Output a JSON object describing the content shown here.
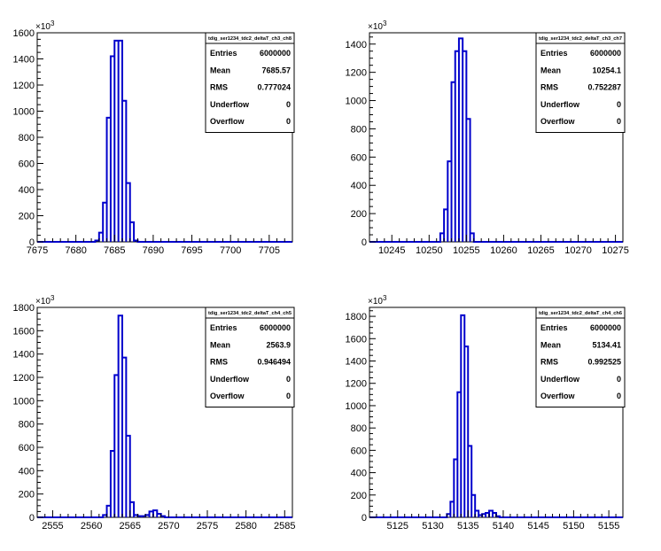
{
  "chart_data": [
    {
      "type": "bar",
      "title": "tdig_ser1234_tdc2_deltaT_ch3_ch8",
      "y_exponent": "10",
      "y_exponent_power": "3",
      "xlim": [
        7675,
        7708
      ],
      "ylim": [
        0,
        1600
      ],
      "x_ticks": [
        7675,
        7680,
        7685,
        7690,
        7695,
        7700,
        7705
      ],
      "y_ticks": [
        0,
        200,
        400,
        600,
        800,
        1000,
        1200,
        1400,
        1600
      ],
      "x_tick_labels": [
        "7675",
        "7680",
        "7685",
        "7690",
        "7695",
        "7700",
        "7705"
      ],
      "y_tick_labels": [
        "0",
        "200",
        "400",
        "600",
        "800",
        "1000",
        "1200",
        "1400",
        "1600"
      ],
      "bin_width": 0.5,
      "bins": [
        [
          7682.5,
          10
        ],
        [
          7683,
          70
        ],
        [
          7683.5,
          300
        ],
        [
          7684,
          950
        ],
        [
          7684.5,
          1420
        ],
        [
          7685,
          1540
        ],
        [
          7685.5,
          1540
        ],
        [
          7686,
          1080
        ],
        [
          7686.5,
          450
        ],
        [
          7687,
          150
        ],
        [
          7687.5,
          10
        ]
      ],
      "color": "#0000cc",
      "stats": [
        [
          "Entries",
          "6000000"
        ],
        [
          "Mean",
          "7685.57"
        ],
        [
          "RMS",
          "0.777024"
        ],
        [
          "Underflow",
          "0"
        ],
        [
          "Overflow",
          "0"
        ]
      ]
    },
    {
      "type": "bar",
      "title": "tdig_ser1234_tdc2_deltaT_ch3_ch7",
      "y_exponent": "10",
      "y_exponent_power": "3",
      "xlim": [
        10242,
        10276
      ],
      "ylim": [
        0,
        1480
      ],
      "x_ticks": [
        10245,
        10250,
        10255,
        10260,
        10265,
        10270,
        10275
      ],
      "y_ticks": [
        0,
        200,
        400,
        600,
        800,
        1000,
        1200,
        1400
      ],
      "x_tick_labels": [
        "10245",
        "10250",
        "10255",
        "10260",
        "10265",
        "10270",
        "10275"
      ],
      "y_tick_labels": [
        "0",
        "200",
        "400",
        "600",
        "800",
        "1000",
        "1200",
        "1400"
      ],
      "bin_width": 0.5,
      "bins": [
        [
          10251.5,
          60
        ],
        [
          10252,
          230
        ],
        [
          10252.5,
          570
        ],
        [
          10253,
          1130
        ],
        [
          10253.5,
          1350
        ],
        [
          10254,
          1440
        ],
        [
          10254.5,
          1350
        ],
        [
          10255,
          870
        ],
        [
          10255.5,
          60
        ]
      ],
      "color": "#0000cc",
      "stats": [
        [
          "Entries",
          "6000000"
        ],
        [
          "Mean",
          "10254.1"
        ],
        [
          "RMS",
          "0.752287"
        ],
        [
          "Underflow",
          "0"
        ],
        [
          "Overflow",
          "0"
        ]
      ]
    },
    {
      "type": "bar",
      "title": "tdig_ser1234_tdc2_deltaT_ch4_ch5",
      "y_exponent": "10",
      "y_exponent_power": "3",
      "xlim": [
        2553,
        2586
      ],
      "ylim": [
        0,
        1800
      ],
      "x_ticks": [
        2555,
        2560,
        2565,
        2570,
        2575,
        2580,
        2585
      ],
      "y_ticks": [
        0,
        200,
        400,
        600,
        800,
        1000,
        1200,
        1400,
        1600,
        1800
      ],
      "x_tick_labels": [
        "2555",
        "2560",
        "2565",
        "2570",
        "2575",
        "2580",
        "2585"
      ],
      "y_tick_labels": [
        "0",
        "200",
        "400",
        "600",
        "800",
        "1000",
        "1200",
        "1400",
        "1600",
        "1800"
      ],
      "bin_width": 0.5,
      "bins": [
        [
          2561.5,
          20
        ],
        [
          2562,
          100
        ],
        [
          2562.5,
          570
        ],
        [
          2563,
          1220
        ],
        [
          2563.5,
          1730
        ],
        [
          2564,
          1370
        ],
        [
          2564.5,
          700
        ],
        [
          2565,
          130
        ],
        [
          2565.5,
          20
        ],
        [
          2566,
          10
        ],
        [
          2566.5,
          10
        ],
        [
          2567,
          20
        ],
        [
          2567.5,
          50
        ],
        [
          2568,
          60
        ],
        [
          2568.5,
          30
        ],
        [
          2569,
          10
        ]
      ],
      "color": "#0000cc",
      "stats": [
        [
          "Entries",
          "6000000"
        ],
        [
          "Mean",
          "2563.9"
        ],
        [
          "RMS",
          "0.946494"
        ],
        [
          "Underflow",
          "0"
        ],
        [
          "Overflow",
          "0"
        ]
      ]
    },
    {
      "type": "bar",
      "title": "tdig_ser1234_tdc2_deltaT_ch4_ch6",
      "y_exponent": "10",
      "y_exponent_power": "3",
      "xlim": [
        5121,
        5157
      ],
      "ylim": [
        0,
        1880
      ],
      "x_ticks": [
        5125,
        5130,
        5135,
        5140,
        5145,
        5150,
        5155
      ],
      "y_ticks": [
        0,
        200,
        400,
        600,
        800,
        1000,
        1200,
        1400,
        1600,
        1800
      ],
      "x_tick_labels": [
        "5125",
        "5130",
        "5135",
        "5140",
        "5145",
        "5150",
        "5155"
      ],
      "y_tick_labels": [
        "0",
        "200",
        "400",
        "600",
        "800",
        "1000",
        "1200",
        "1400",
        "1600",
        "1800"
      ],
      "bin_width": 0.5,
      "bins": [
        [
          5132,
          30
        ],
        [
          5132.5,
          140
        ],
        [
          5133,
          520
        ],
        [
          5133.5,
          1120
        ],
        [
          5134,
          1810
        ],
        [
          5134.5,
          1530
        ],
        [
          5135,
          640
        ],
        [
          5135.5,
          200
        ],
        [
          5136,
          60
        ],
        [
          5136.5,
          20
        ],
        [
          5137,
          30
        ],
        [
          5137.5,
          40
        ],
        [
          5138,
          60
        ],
        [
          5138.5,
          40
        ],
        [
          5139,
          10
        ]
      ],
      "color": "#0000cc",
      "stats": [
        [
          "Entries",
          "6000000"
        ],
        [
          "Mean",
          "5134.41"
        ],
        [
          "RMS",
          "0.992525"
        ],
        [
          "Underflow",
          "0"
        ],
        [
          "Overflow",
          "0"
        ]
      ]
    }
  ]
}
